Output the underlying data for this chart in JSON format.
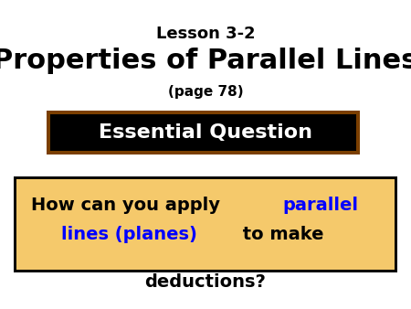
{
  "bg_color": "#ffffff",
  "title_line1": "Lesson 3-2",
  "title_line2": "Properties of Parallel Lines",
  "title_line3": "(page 78)",
  "title_line1_fontsize": 13,
  "title_line2_fontsize": 22,
  "title_line3_fontsize": 11,
  "eq_label": "Essential Question",
  "eq_bg": "#000000",
  "eq_border": "#7B3F00",
  "eq_text_color": "#ffffff",
  "eq_fontsize": 16,
  "q_line1_black": "How can you apply ",
  "q_line1_blue": "parallel",
  "q_line2_blue": "lines (planes)",
  "q_line2_black": " to make",
  "q_line3": "deductions?",
  "q_bg": "#F5C96B",
  "q_border": "#000000",
  "q_text_color": "#000000",
  "q_highlight_color": "#0000FF",
  "q_fontsize": 14
}
